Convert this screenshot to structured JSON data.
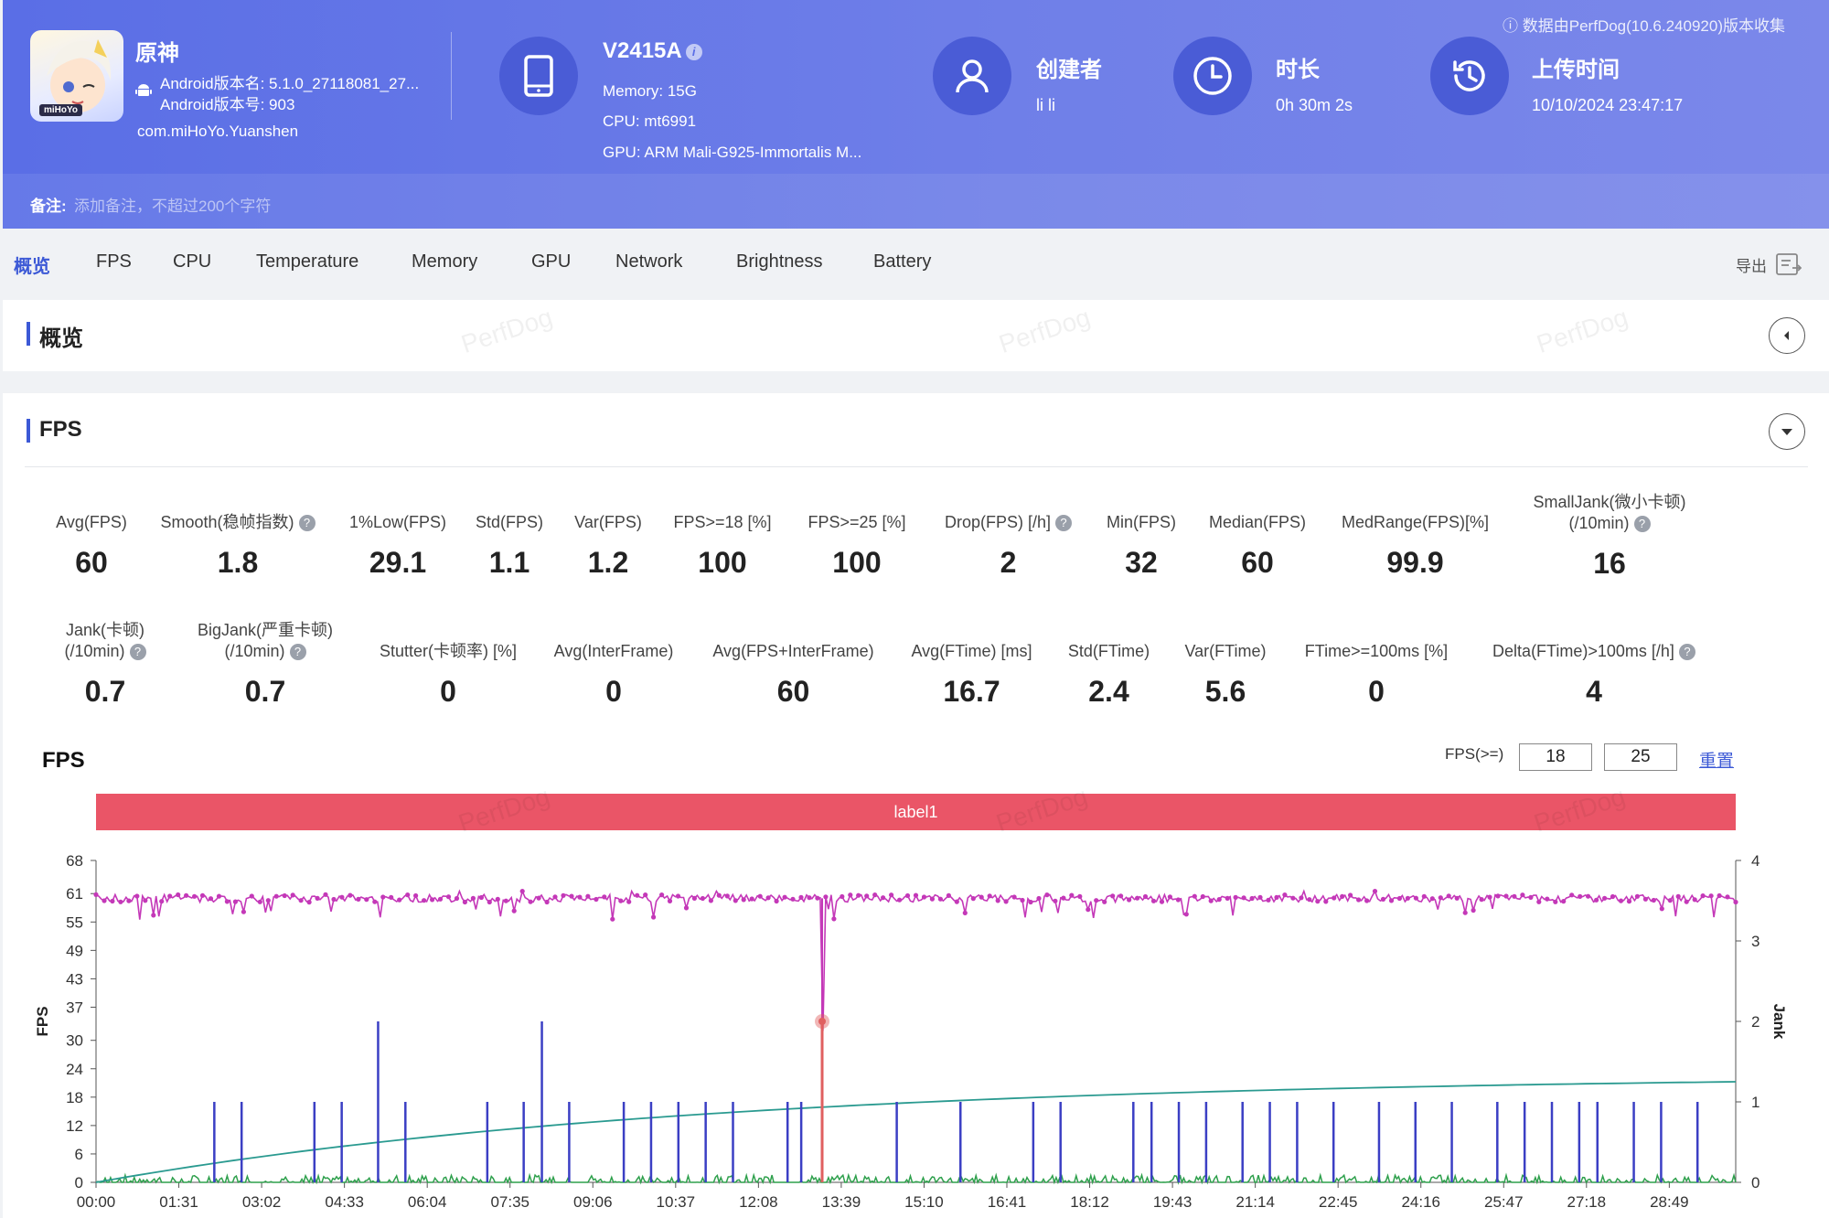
{
  "header": {
    "collect_note": "数据由PerfDog(10.6.240920)版本收集",
    "app": {
      "name": "原神",
      "icon_badge": "miHoYo",
      "version_name": "Android版本名: 5.1.0_27118081_27...",
      "version_code": "Android版本号: 903",
      "package": "com.miHoYo.Yuanshen"
    },
    "device": {
      "name": "V2415A",
      "memory": "Memory: 15G",
      "cpu": "CPU: mt6991",
      "gpu": "GPU: ARM Mali-G925-Immortalis M..."
    },
    "creator": {
      "title": "创建者",
      "value": "li li"
    },
    "duration": {
      "title": "时长",
      "value": "0h 30m 2s"
    },
    "upload": {
      "title": "上传时间",
      "value": "10/10/2024 23:47:17"
    },
    "note": {
      "label": "备注:",
      "placeholder": "添加备注，不超过200个字符"
    }
  },
  "tabs": [
    "概览",
    "FPS",
    "CPU",
    "Temperature",
    "Memory",
    "GPU",
    "Network",
    "Brightness",
    "Battery"
  ],
  "export_label": "导出",
  "overview_title": "概览",
  "fps_title": "FPS",
  "watermark": "PerfDog",
  "metrics_row1": [
    {
      "label": "Avg(FPS)",
      "value": "60"
    },
    {
      "label": "Smooth(稳帧指数)",
      "value": "1.8"
    },
    {
      "label": "1%Low(FPS)",
      "value": "29.1"
    },
    {
      "label": "Std(FPS)",
      "value": "1.1"
    },
    {
      "label": "Var(FPS)",
      "value": "1.2"
    },
    {
      "label": "FPS>=18 [%]",
      "value": "100"
    },
    {
      "label": "FPS>=25 [%]",
      "value": "100"
    },
    {
      "label": "Drop(FPS) [/h]",
      "value": "2"
    },
    {
      "label": "Min(FPS)",
      "value": "32"
    },
    {
      "label": "Median(FPS)",
      "value": "60"
    },
    {
      "label": "MedRange(FPS)[%]",
      "value": "99.9"
    },
    {
      "label": "SmallJank(微小卡顿)",
      "label2": "(/10min)",
      "value": "16"
    }
  ],
  "metrics_row2": [
    {
      "label": "Jank(卡顿)",
      "label2": "(/10min)",
      "value": "0.7"
    },
    {
      "label": "BigJank(严重卡顿)",
      "label2": "(/10min)",
      "value": "0.7"
    },
    {
      "label": "Stutter(卡顿率) [%]",
      "value": "0"
    },
    {
      "label": "Avg(InterFrame)",
      "value": "0"
    },
    {
      "label": "Avg(FPS+InterFrame)",
      "value": "60"
    },
    {
      "label": "Avg(FTime) [ms]",
      "value": "16.7"
    },
    {
      "label": "Std(FTime)",
      "value": "2.4"
    },
    {
      "label": "Var(FTime)",
      "value": "5.6"
    },
    {
      "label": "FTime>=100ms [%]",
      "value": "0"
    },
    {
      "label": "Delta(FTime)>100ms [/h]",
      "value": "4"
    }
  ],
  "fps_chart": {
    "title": "FPS",
    "threshold_label": "FPS(>=)",
    "threshold_low": "18",
    "threshold_high": "25",
    "reset_label": "重置",
    "label_band": "label1"
  },
  "chart_data": {
    "type": "line",
    "title": "FPS",
    "ylabel": "FPS",
    "y2label": "Jank",
    "yticks": [
      0,
      6,
      12,
      18,
      24,
      30,
      37,
      43,
      49,
      55,
      61,
      68
    ],
    "y2ticks": [
      0,
      1,
      2,
      3,
      4
    ],
    "ylim": [
      0,
      68
    ],
    "y2lim": [
      0,
      4
    ],
    "xticks": [
      "00:00",
      "01:31",
      "03:02",
      "04:33",
      "06:04",
      "07:35",
      "09:06",
      "10:37",
      "12:08",
      "13:39",
      "15:10",
      "16:41",
      "18:12",
      "19:43",
      "21:14",
      "22:45",
      "24:16",
      "25:47",
      "27:18",
      "28:49"
    ],
    "series": [
      {
        "name": "FPS",
        "color": "#c438b8",
        "baseline": 60,
        "min_point": {
          "time": "13:18",
          "value": 32
        }
      },
      {
        "name": "Jank",
        "color": "#3b3fc4",
        "spike_height": 1,
        "big_spike_height": 2,
        "big_spike_times": [
          "05:10",
          "08:10"
        ],
        "spike_times": [
          "02:10",
          "02:40",
          "04:00",
          "04:30",
          "05:40",
          "07:10",
          "07:50",
          "08:40",
          "09:40",
          "10:10",
          "10:40",
          "11:10",
          "11:40",
          "12:40",
          "12:55",
          "13:18",
          "14:40",
          "15:50",
          "17:10",
          "17:40",
          "19:00",
          "19:20",
          "19:50",
          "20:20",
          "21:00",
          "21:30",
          "22:00",
          "22:40",
          "23:30",
          "24:10",
          "24:50",
          "25:40",
          "26:10",
          "26:40",
          "27:10",
          "27:30",
          "28:10",
          "28:40",
          "29:20"
        ]
      },
      {
        "name": "InterFrame",
        "color": "#2ea04c",
        "approx_value": 0.1
      },
      {
        "name": "Stutter",
        "color": "#2a9a90",
        "start": 0,
        "end": 1.25
      },
      {
        "name": "BigJank",
        "color": "#e06060",
        "time": "13:18",
        "value": 2
      }
    ]
  }
}
